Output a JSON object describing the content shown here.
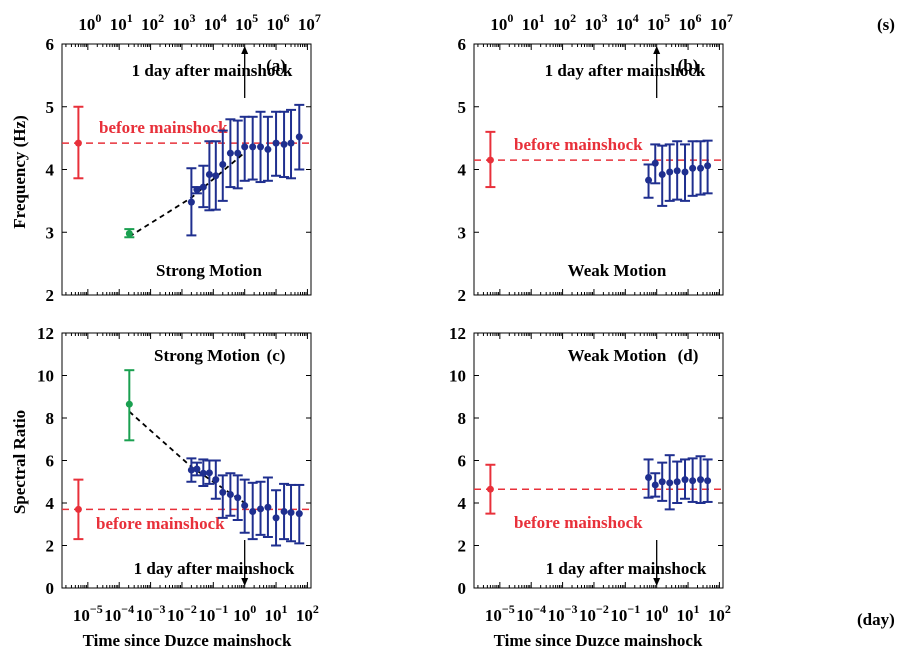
{
  "colors": {
    "axes": "#000000",
    "data_point": "#1f2f8f",
    "before": "#e8303a",
    "strong_first": "#1aa050",
    "trend": "#000000"
  },
  "labels": {
    "x_axis": "Time since Duzce mainshock",
    "y_top": "Frequency (Hz)",
    "y_bottom": "Spectral Ratio",
    "unit_seconds": "(s)",
    "unit_days": "(day)",
    "before": "before mainshock",
    "day_after": "1 day after mainshock",
    "strong": "Strong Motion",
    "weak": "Weak Motion"
  },
  "x_ticks_days": [
    {
      "base": "10",
      "exp": "−5",
      "value": 1e-05
    },
    {
      "base": "10",
      "exp": "−4",
      "value": 0.0001
    },
    {
      "base": "10",
      "exp": "−3",
      "value": 0.001
    },
    {
      "base": "10",
      "exp": "−2",
      "value": 0.01
    },
    {
      "base": "10",
      "exp": "−1",
      "value": 0.1
    },
    {
      "base": "10",
      "exp": "0",
      "value": 1
    },
    {
      "base": "10",
      "exp": "1",
      "value": 10
    },
    {
      "base": "10",
      "exp": "2",
      "value": 100
    }
  ],
  "x_ticks_seconds": [
    {
      "base": "10",
      "exp": "0",
      "value": 1
    },
    {
      "base": "10",
      "exp": "1",
      "value": 10
    },
    {
      "base": "10",
      "exp": "2",
      "value": 100
    },
    {
      "base": "10",
      "exp": "3",
      "value": 1000
    },
    {
      "base": "10",
      "exp": "4",
      "value": 10000
    },
    {
      "base": "10",
      "exp": "5",
      "value": 100000
    },
    {
      "base": "10",
      "exp": "6",
      "value": 1000000
    },
    {
      "base": "10",
      "exp": "7",
      "value": 10000000
    }
  ],
  "chart_data": [
    {
      "type": "scatter",
      "panel": "(a)",
      "motion": "Strong Motion",
      "xscale": "log",
      "xunit": "day",
      "xlim": [
        1.5e-06,
        130
      ],
      "ylim": [
        2,
        6
      ],
      "yticks": [
        "2",
        "3",
        "4",
        "5",
        "6"
      ],
      "before": {
        "x": 5e-06,
        "y": 4.42,
        "low": 3.86,
        "high": 5.0
      },
      "first": {
        "x": 0.00021,
        "y": 2.98,
        "low": 2.92,
        "high": 3.05
      },
      "trend": [
        [
          0.00021,
          2.93
        ],
        [
          0.02,
          3.55
        ],
        [
          1.0,
          4.27
        ]
      ],
      "points": [
        {
          "x": 0.02,
          "y": 3.48,
          "low": 2.95,
          "high": 4.02
        },
        {
          "x": 0.03,
          "y": 3.68,
          "low": 3.62,
          "high": 3.72
        },
        {
          "x": 0.048,
          "y": 3.72,
          "low": 3.4,
          "high": 4.06
        },
        {
          "x": 0.075,
          "y": 3.92,
          "low": 3.35,
          "high": 4.45
        },
        {
          "x": 0.12,
          "y": 3.9,
          "low": 3.36,
          "high": 4.45
        },
        {
          "x": 0.2,
          "y": 4.08,
          "low": 3.5,
          "high": 4.62
        },
        {
          "x": 0.35,
          "y": 4.26,
          "low": 3.72,
          "high": 4.8
        },
        {
          "x": 0.6,
          "y": 4.26,
          "low": 3.7,
          "high": 4.78
        },
        {
          "x": 1.0,
          "y": 4.36,
          "low": 3.82,
          "high": 4.84
        },
        {
          "x": 1.8,
          "y": 4.36,
          "low": 3.84,
          "high": 4.84
        },
        {
          "x": 3.2,
          "y": 4.36,
          "low": 3.8,
          "high": 4.92
        },
        {
          "x": 5.5,
          "y": 4.32,
          "low": 3.82,
          "high": 4.84
        },
        {
          "x": 10.0,
          "y": 4.42,
          "low": 3.9,
          "high": 4.92
        },
        {
          "x": 18.0,
          "y": 4.4,
          "low": 3.88,
          "high": 4.92
        },
        {
          "x": 30.0,
          "y": 4.42,
          "low": 3.86,
          "high": 4.95
        },
        {
          "x": 55.0,
          "y": 4.52,
          "low": 4.0,
          "high": 5.03
        }
      ],
      "before_level": 4.42,
      "arrow": "up"
    },
    {
      "type": "scatter",
      "panel": "(b)",
      "motion": "Weak Motion",
      "xscale": "log",
      "xunit": "day",
      "xlim": [
        1.5e-06,
        130
      ],
      "ylim": [
        2,
        6
      ],
      "yticks": [
        "2",
        "3",
        "4",
        "5",
        "6"
      ],
      "before": {
        "x": 5e-06,
        "y": 4.15,
        "low": 3.72,
        "high": 4.6
      },
      "points": [
        {
          "x": 0.55,
          "y": 3.83,
          "low": 3.55,
          "high": 4.08
        },
        {
          "x": 0.9,
          "y": 4.1,
          "low": 3.78,
          "high": 4.4
        },
        {
          "x": 1.5,
          "y": 3.92,
          "low": 3.42,
          "high": 4.38
        },
        {
          "x": 2.6,
          "y": 3.96,
          "low": 3.5,
          "high": 4.4
        },
        {
          "x": 4.5,
          "y": 3.98,
          "low": 3.52,
          "high": 4.45
        },
        {
          "x": 8.0,
          "y": 3.96,
          "low": 3.5,
          "high": 4.4
        },
        {
          "x": 14.0,
          "y": 4.02,
          "low": 3.58,
          "high": 4.45
        },
        {
          "x": 25.0,
          "y": 4.02,
          "low": 3.6,
          "high": 4.45
        },
        {
          "x": 42.0,
          "y": 4.06,
          "low": 3.62,
          "high": 4.46
        }
      ],
      "before_level": 4.15,
      "arrow": "up"
    },
    {
      "type": "scatter",
      "panel": "(c)",
      "motion": "Strong Motion",
      "xscale": "log",
      "xunit": "day",
      "xlim": [
        1.5e-06,
        130
      ],
      "ylim": [
        0,
        12
      ],
      "yticks": [
        "0",
        "2",
        "4",
        "6",
        "8",
        "10",
        "12"
      ],
      "before": {
        "x": 5e-06,
        "y": 3.7,
        "low": 2.3,
        "high": 5.1
      },
      "first": {
        "x": 0.00021,
        "y": 8.65,
        "low": 6.95,
        "high": 10.25
      },
      "trend": [
        [
          0.00021,
          8.3
        ],
        [
          0.02,
          5.7
        ],
        [
          1.0,
          4.0
        ]
      ],
      "points": [
        {
          "x": 0.02,
          "y": 5.55,
          "low": 5.0,
          "high": 6.1
        },
        {
          "x": 0.03,
          "y": 5.6,
          "low": 5.3,
          "high": 5.9
        },
        {
          "x": 0.048,
          "y": 5.4,
          "low": 4.8,
          "high": 6.05
        },
        {
          "x": 0.075,
          "y": 5.42,
          "low": 4.9,
          "high": 6.0
        },
        {
          "x": 0.12,
          "y": 5.1,
          "low": 4.2,
          "high": 6.0
        },
        {
          "x": 0.2,
          "y": 4.5,
          "low": 3.3,
          "high": 5.3
        },
        {
          "x": 0.35,
          "y": 4.4,
          "low": 3.4,
          "high": 5.4
        },
        {
          "x": 0.6,
          "y": 4.25,
          "low": 3.2,
          "high": 5.3
        },
        {
          "x": 1.0,
          "y": 3.88,
          "low": 2.6,
          "high": 5.1
        },
        {
          "x": 1.8,
          "y": 3.6,
          "low": 2.3,
          "high": 4.95
        },
        {
          "x": 3.2,
          "y": 3.72,
          "low": 2.5,
          "high": 5.0
        },
        {
          "x": 5.5,
          "y": 3.8,
          "low": 2.4,
          "high": 5.2
        },
        {
          "x": 10.0,
          "y": 3.3,
          "low": 2.0,
          "high": 4.6
        },
        {
          "x": 18.0,
          "y": 3.6,
          "low": 2.3,
          "high": 4.9
        },
        {
          "x": 30.0,
          "y": 3.55,
          "low": 2.2,
          "high": 4.85
        },
        {
          "x": 55.0,
          "y": 3.5,
          "low": 2.1,
          "high": 4.85
        }
      ],
      "before_level": 3.7,
      "arrow": "down"
    },
    {
      "type": "scatter",
      "panel": "(d)",
      "motion": "Weak Motion",
      "xscale": "log",
      "xunit": "day",
      "xlim": [
        1.5e-06,
        130
      ],
      "ylim": [
        0,
        12
      ],
      "yticks": [
        "0",
        "2",
        "4",
        "6",
        "8",
        "10",
        "12"
      ],
      "before": {
        "x": 5e-06,
        "y": 4.65,
        "low": 3.5,
        "high": 5.8
      },
      "points": [
        {
          "x": 0.55,
          "y": 5.2,
          "low": 4.25,
          "high": 6.05
        },
        {
          "x": 0.9,
          "y": 4.85,
          "low": 4.3,
          "high": 5.4
        },
        {
          "x": 1.5,
          "y": 5.0,
          "low": 4.1,
          "high": 5.9
        },
        {
          "x": 2.6,
          "y": 4.95,
          "low": 3.7,
          "high": 6.25
        },
        {
          "x": 4.5,
          "y": 5.0,
          "low": 4.0,
          "high": 5.95
        },
        {
          "x": 8.0,
          "y": 5.1,
          "low": 4.2,
          "high": 6.05
        },
        {
          "x": 14.0,
          "y": 5.05,
          "low": 4.05,
          "high": 6.1
        },
        {
          "x": 25.0,
          "y": 5.1,
          "low": 4.0,
          "high": 6.2
        },
        {
          "x": 42.0,
          "y": 5.05,
          "low": 4.05,
          "high": 6.05
        }
      ],
      "before_level": 4.65,
      "arrow": "down"
    }
  ]
}
